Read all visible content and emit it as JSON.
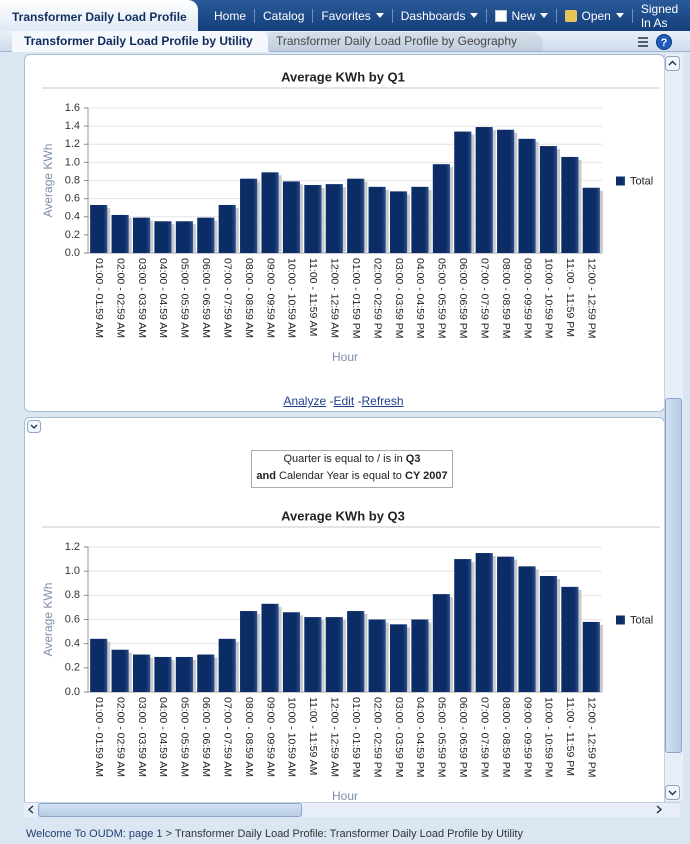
{
  "header": {
    "title": "Transformer Daily Load Profile",
    "nav": [
      "Home",
      "Catalog",
      "Favorites",
      "Dashboards",
      "New",
      "Open",
      "Signed In As"
    ]
  },
  "tabs": [
    "Transformer Daily Load Profile by Utility",
    "Transformer Daily Load Profile by Geography"
  ],
  "links": [
    "Analyze",
    "-",
    "Edit",
    "-",
    "Refresh"
  ],
  "filter": {
    "line1": [
      "Quarter is equal to / is in",
      "Q3"
    ],
    "line2": [
      "and",
      "Calendar Year is equal to",
      "CY 2007"
    ]
  },
  "breadcrumb": [
    "Welcome To OUDM: page 1",
    ">",
    "Transformer Daily Load Profile: Transformer Daily Load Profile by Utility"
  ],
  "chart_data": [
    {
      "type": "bar",
      "title": "Average KWh by Q1",
      "y_label": "Average KWh",
      "x_label": "Hour",
      "categories": [
        "01:00 - 01:59 AM",
        "02:00 - 02:59 AM",
        "03:00 - 03:59 AM",
        "04:00 - 04:59 AM",
        "05:00 - 05:59 AM",
        "06:00 - 06:59 AM",
        "07:00 - 07:59 AM",
        "08:00 - 08:59 AM",
        "09:00 - 09:59 AM",
        "10:00 - 10:59 AM",
        "11:00 - 11:59 AM",
        "12:00 - 12:59 AM",
        "01:00 - 01:59 PM",
        "02:00 - 02:59 PM",
        "03:00 - 03:59 PM",
        "04:00 - 04:59 PM",
        "05:00 - 05:59 PM",
        "06:00 - 06:59 PM",
        "07:00 - 07:59 PM",
        "08:00 - 08:59 PM",
        "09:00 - 09:59 PM",
        "10:00 - 10:59 PM",
        "11:00 - 11:59 PM",
        "12:00 - 12:59 PM"
      ],
      "series": [
        {
          "name": "Total",
          "color": "#0c2c66",
          "values": [
            0.53,
            0.42,
            0.39,
            0.35,
            0.35,
            0.39,
            0.53,
            0.82,
            0.89,
            0.79,
            0.75,
            0.76,
            0.82,
            0.73,
            0.68,
            0.73,
            0.98,
            1.34,
            1.39,
            1.36,
            1.26,
            1.18,
            1.06,
            0.72
          ]
        }
      ],
      "ylim": [
        0,
        1.6
      ],
      "yticks": [
        {
          "value": 0,
          "label": "0.0"
        },
        0.2,
        0.4,
        0.6,
        0.8,
        {
          "value": 1,
          "label": "1.0"
        },
        1.2,
        1.4,
        1.6
      ],
      "grid": true,
      "legend": "right"
    },
    {
      "type": "bar",
      "title": "Average KWh by Q3",
      "y_label": "Average KWh",
      "x_label": "Hour",
      "categories": [
        "01:00 - 01:59 AM",
        "02:00 - 02:59 AM",
        "03:00 - 03:59 AM",
        "04:00 - 04:59 AM",
        "05:00 - 05:59 AM",
        "06:00 - 06:59 AM",
        "07:00 - 07:59 AM",
        "08:00 - 08:59 AM",
        "09:00 - 09:59 AM",
        "10:00 - 10:59 AM",
        "11:00 - 11:59 AM",
        "12:00 - 12:59 AM",
        "01:00 - 01:59 PM",
        "02:00 - 02:59 PM",
        "03:00 - 03:59 PM",
        "04:00 - 04:59 PM",
        "05:00 - 05:59 PM",
        "06:00 - 06:59 PM",
        "07:00 - 07:59 PM",
        "08:00 - 08:59 PM",
        "09:00 - 09:59 PM",
        "10:00 - 10:59 PM",
        "11:00 - 11:59 PM",
        "12:00 - 12:59 PM"
      ],
      "series": [
        {
          "name": "Total",
          "color": "#0c2c66",
          "values": [
            0.44,
            0.35,
            0.31,
            0.29,
            0.29,
            0.31,
            0.44,
            0.67,
            0.73,
            0.66,
            0.62,
            0.62,
            0.67,
            0.6,
            0.56,
            0.6,
            0.81,
            1.1,
            1.15,
            1.12,
            1.04,
            0.96,
            0.87,
            0.58
          ]
        }
      ],
      "ylim": [
        0,
        1.2
      ],
      "yticks": [
        {
          "value": 0,
          "label": "0.0"
        },
        0.2,
        0.4,
        0.6,
        0.8,
        {
          "value": 1,
          "label": "1.0"
        },
        1.2
      ],
      "grid": true,
      "legend": "right"
    }
  ]
}
